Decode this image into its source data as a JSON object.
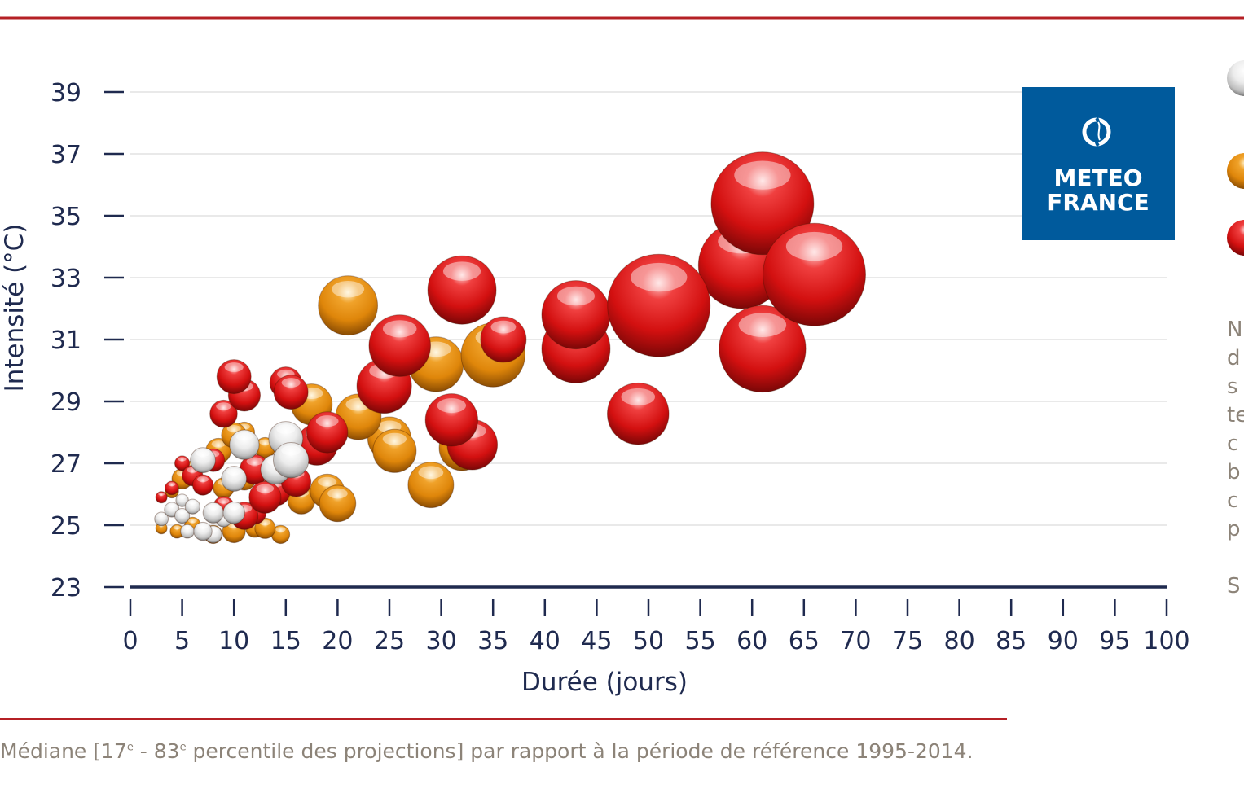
{
  "chart_data": {
    "type": "scatter",
    "xlabel": "Durée (jours)",
    "ylabel": "Intensité (°C)",
    "xlim": [
      0,
      100
    ],
    "ylim": [
      23,
      39
    ],
    "xticks": [
      0,
      5,
      10,
      15,
      20,
      25,
      30,
      35,
      40,
      45,
      50,
      55,
      60,
      65,
      70,
      75,
      80,
      85,
      90,
      95,
      100
    ],
    "yticks": [
      39,
      37,
      35,
      33,
      31,
      29,
      27,
      25,
      23
    ],
    "grid": "horizontal",
    "bubble_size_unit": "relative",
    "series": [
      {
        "color": "#c8c8c8",
        "points": [
          [
            3,
            25.2,
            1.2
          ],
          [
            4,
            25.5,
            1.3
          ],
          [
            5,
            25.3,
            1.3
          ],
          [
            5.5,
            24.8,
            1.2
          ],
          [
            5,
            25.8,
            1.1
          ],
          [
            6,
            25.6,
            1.3
          ],
          [
            7,
            24.8,
            1.6
          ],
          [
            7,
            27.1,
            2.2
          ],
          [
            8,
            25.4,
            1.8
          ],
          [
            8,
            24.7,
            1.5
          ],
          [
            9,
            25.2,
            1.4
          ],
          [
            10,
            25.4,
            1.9
          ],
          [
            10,
            26.5,
            2.2
          ],
          [
            11,
            27.6,
            2.6
          ],
          [
            14,
            26.8,
            2.6
          ],
          [
            15,
            27.8,
            3.0
          ],
          [
            15.5,
            27.1,
            3.1
          ]
        ]
      },
      {
        "color": "#e08a0c",
        "points": [
          [
            3,
            24.9,
            1.0
          ],
          [
            4,
            26.1,
            1.2
          ],
          [
            4.5,
            24.8,
            1.2
          ],
          [
            5,
            26.5,
            1.8
          ],
          [
            6,
            25.0,
            1.4
          ],
          [
            6,
            26.8,
            1.5
          ],
          [
            8,
            24.7,
            1.6
          ],
          [
            8.5,
            27.4,
            2.2
          ],
          [
            9,
            26.2,
            1.8
          ],
          [
            10,
            27.9,
            2.2
          ],
          [
            10,
            24.8,
            2.0
          ],
          [
            11,
            28.0,
            1.8
          ],
          [
            11,
            26.5,
            2.0
          ],
          [
            12,
            24.9,
            1.6
          ],
          [
            13,
            27.5,
            1.8
          ],
          [
            13,
            24.9,
            1.8
          ],
          [
            14.5,
            24.7,
            1.6
          ],
          [
            16.5,
            25.8,
            2.4
          ],
          [
            17.5,
            28.9,
            3.6
          ],
          [
            19,
            26.1,
            3.0
          ],
          [
            20,
            25.7,
            3.2
          ],
          [
            22,
            28.5,
            4.0
          ],
          [
            25,
            27.8,
            3.8
          ],
          [
            25.5,
            27.4,
            3.8
          ],
          [
            29,
            26.3,
            4.0
          ],
          [
            29.5,
            30.2,
            4.8
          ],
          [
            32,
            27.5,
            4.0
          ],
          [
            35,
            30.5,
            5.6
          ],
          [
            21,
            32.1,
            5.2
          ]
        ]
      },
      {
        "color": "#dc1414",
        "points": [
          [
            3,
            25.9,
            1.0
          ],
          [
            4,
            26.2,
            1.2
          ],
          [
            5,
            27.0,
            1.3
          ],
          [
            6,
            26.6,
            1.8
          ],
          [
            7,
            26.3,
            1.8
          ],
          [
            8,
            27.1,
            2.0
          ],
          [
            9,
            28.6,
            2.4
          ],
          [
            9,
            25.6,
            1.8
          ],
          [
            10,
            29.8,
            3.0
          ],
          [
            11,
            29.2,
            2.8
          ],
          [
            11,
            25.3,
            2.4
          ],
          [
            12,
            25.4,
            2.0
          ],
          [
            12,
            26.8,
            2.6
          ],
          [
            13,
            25.9,
            2.8
          ],
          [
            14,
            26.1,
            2.6
          ],
          [
            15,
            29.6,
            2.8
          ],
          [
            15.5,
            29.3,
            3.0
          ],
          [
            16,
            26.4,
            2.6
          ],
          [
            18,
            27.6,
            3.6
          ],
          [
            19,
            28.0,
            3.6
          ],
          [
            26,
            30.8,
            5.4
          ],
          [
            24.5,
            29.5,
            4.8
          ],
          [
            31,
            28.4,
            4.6
          ],
          [
            33,
            27.6,
            4.4
          ],
          [
            32,
            32.6,
            6.0
          ],
          [
            36,
            31.0,
            4.0
          ],
          [
            43,
            30.7,
            6.0
          ],
          [
            43,
            31.8,
            6.0
          ],
          [
            49,
            28.6,
            5.4
          ],
          [
            51,
            32.1,
            9.0
          ],
          [
            61,
            35.4,
            9.0
          ],
          [
            66,
            33.1,
            9.0
          ],
          [
            59,
            33.4,
            7.6
          ],
          [
            61,
            30.7,
            7.6
          ]
        ]
      }
    ]
  },
  "side_text_lines": [
    "N",
    "d",
    "s",
    "te",
    "c",
    "b",
    "c",
    "p",
    "S"
  ],
  "logo": {
    "line1": "METEO",
    "line2": "FRANCE"
  },
  "footnote": {
    "part1": "Médiane [17",
    "sup1": "e",
    "part2": " - 83",
    "sup2": "e",
    "part3": " percentile des projections] par rapport à la période de référence 1995-2014."
  },
  "colors": {
    "accent_line": "#b52025",
    "axis": "#1f2a4f",
    "grid": "#e2e2e2",
    "logo_bg": "#005a9c"
  }
}
